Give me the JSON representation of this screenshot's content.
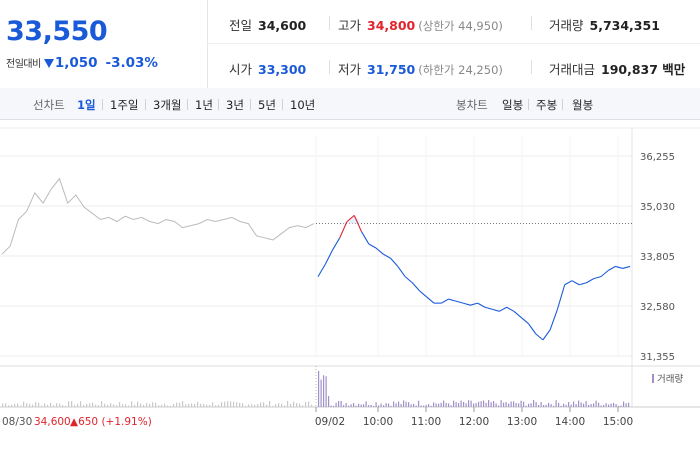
{
  "quote": {
    "price": "33,550",
    "change_label": "전일대비",
    "change": "1,050",
    "change_pct": "-3.03%"
  },
  "stats": {
    "prev_close": {
      "label": "전일",
      "value": "34,600"
    },
    "high": {
      "label": "고가",
      "value": "34,800",
      "sub": "(상한가 44,950)"
    },
    "volume": {
      "label": "거래량",
      "value": "5,734,351"
    },
    "open": {
      "label": "시가",
      "value": "33,300"
    },
    "low": {
      "label": "저가",
      "value": "31,750",
      "sub": "(하한가 24,250)"
    },
    "turnover": {
      "label": "거래대금",
      "value": "190,837 백만"
    }
  },
  "period_tabs": {
    "label": "선차트",
    "items": [
      "1일",
      "1주일",
      "3개월",
      "1년",
      "3년",
      "5년",
      "10년"
    ],
    "active": "1일"
  },
  "candle_tabs": {
    "label": "봉차트",
    "items": [
      "일봉",
      "주봉",
      "월봉"
    ]
  },
  "colors": {
    "up": "#e0242c",
    "down": "#1a5ad9",
    "prev_line": "#bbbbbb",
    "fill": "#e7eefb",
    "volume": "#a08fc8"
  },
  "chart_data": {
    "type": "line",
    "y_ticks": [
      "36,255",
      "35,030",
      "33,805",
      "32,580",
      "31,355"
    ],
    "y_tick_values": [
      36255,
      35030,
      33805,
      32580,
      31355
    ],
    "ylim": [
      31355,
      36255
    ],
    "reference_price": 34600,
    "prev_day_label": "08/30",
    "prev_day_close": "34,600",
    "prev_day_change": "▲650 (+1.91%)",
    "x_labels": [
      "09/02",
      "10:00",
      "11:00",
      "12:00",
      "13:00",
      "14:00",
      "15:00"
    ],
    "volume_legend": "거래량",
    "series": [
      {
        "period": "08/30",
        "points": [
          [
            0,
            33850
          ],
          [
            1,
            34050
          ],
          [
            2,
            34700
          ],
          [
            3,
            34900
          ],
          [
            4,
            35350
          ],
          [
            5,
            35100
          ],
          [
            6,
            35450
          ],
          [
            7,
            35700
          ],
          [
            8,
            35100
          ],
          [
            9,
            35300
          ],
          [
            10,
            35000
          ],
          [
            11,
            34850
          ],
          [
            12,
            34700
          ],
          [
            13,
            34750
          ],
          [
            14,
            34650
          ],
          [
            15,
            34780
          ],
          [
            16,
            34700
          ],
          [
            17,
            34750
          ],
          [
            18,
            34650
          ],
          [
            19,
            34600
          ],
          [
            20,
            34700
          ],
          [
            21,
            34650
          ],
          [
            22,
            34500
          ],
          [
            23,
            34550
          ],
          [
            24,
            34600
          ],
          [
            25,
            34700
          ],
          [
            26,
            34650
          ],
          [
            27,
            34700
          ],
          [
            28,
            34750
          ],
          [
            29,
            34650
          ],
          [
            30,
            34600
          ],
          [
            31,
            34300
          ],
          [
            32,
            34250
          ],
          [
            33,
            34200
          ],
          [
            34,
            34350
          ],
          [
            35,
            34500
          ],
          [
            36,
            34550
          ],
          [
            37,
            34500
          ],
          [
            38,
            34600
          ]
        ]
      },
      {
        "period": "09/02",
        "points": [
          [
            0,
            33300
          ],
          [
            1,
            33600
          ],
          [
            2,
            33950
          ],
          [
            3,
            34250
          ],
          [
            4,
            34650
          ],
          [
            5,
            34800
          ],
          [
            6,
            34400
          ],
          [
            7,
            34100
          ],
          [
            8,
            34000
          ],
          [
            9,
            33850
          ],
          [
            10,
            33750
          ],
          [
            11,
            33550
          ],
          [
            12,
            33300
          ],
          [
            13,
            33150
          ],
          [
            14,
            32950
          ],
          [
            15,
            32800
          ],
          [
            16,
            32650
          ],
          [
            17,
            32650
          ],
          [
            18,
            32750
          ],
          [
            19,
            32700
          ],
          [
            20,
            32650
          ],
          [
            21,
            32600
          ],
          [
            22,
            32650
          ],
          [
            23,
            32550
          ],
          [
            24,
            32500
          ],
          [
            25,
            32450
          ],
          [
            26,
            32550
          ],
          [
            27,
            32450
          ],
          [
            28,
            32300
          ],
          [
            29,
            32150
          ],
          [
            30,
            31900
          ],
          [
            31,
            31750
          ],
          [
            32,
            32000
          ],
          [
            33,
            32500
          ],
          [
            34,
            33100
          ],
          [
            35,
            33200
          ],
          [
            36,
            33100
          ],
          [
            37,
            33150
          ],
          [
            38,
            33250
          ],
          [
            39,
            33300
          ],
          [
            40,
            33450
          ],
          [
            41,
            33550
          ],
          [
            42,
            33500
          ],
          [
            43,
            33550
          ]
        ]
      }
    ]
  }
}
